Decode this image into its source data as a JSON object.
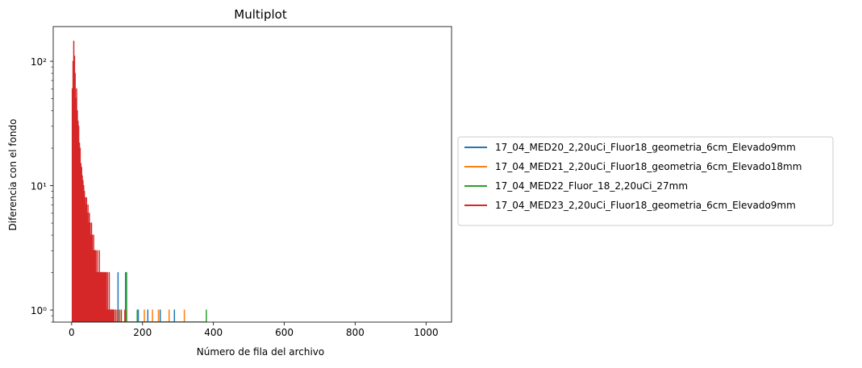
{
  "chart_data": {
    "type": "line",
    "title": "Multiplot",
    "xlabel": "Número de fila del archivo",
    "ylabel": "Diferencia con el fondo",
    "xlim": [
      -52,
      1072
    ],
    "ylim": [
      0.8,
      190
    ],
    "yscale": "log",
    "grid": false,
    "legend_position": "outside-right",
    "x_ticks": [
      0,
      200,
      400,
      600,
      800,
      1000
    ],
    "x_tick_labels": [
      "0",
      "200",
      "400",
      "600",
      "800",
      "1000"
    ],
    "y_ticks": [
      1,
      10,
      100
    ],
    "y_tick_labels": [
      "10⁰",
      "10¹",
      "10²"
    ],
    "series": [
      {
        "name": "17_04_MED20_2,20uCi_Fluor18_geometria_6cm_Elevado9mm",
        "color": "#1f77b4",
        "x": [
          8,
          12,
          15,
          18,
          22,
          26,
          30,
          34,
          38,
          42,
          48,
          55,
          62,
          70,
          80,
          90,
          105,
          131,
          152,
          188,
          215,
          250,
          290
        ],
        "y": [
          10,
          19,
          18,
          14,
          12,
          8,
          6,
          7,
          5,
          4,
          3,
          2,
          3,
          2,
          1,
          2,
          1,
          2,
          2,
          1,
          1,
          1,
          1
        ]
      },
      {
        "name": "17_04_MED21_2,20uCi_Fluor18_geometria_6cm_Elevado18mm",
        "color": "#ff7f0e",
        "x": [
          6,
          10,
          14,
          18,
          24,
          30,
          40,
          52,
          66,
          80,
          100,
          120,
          140,
          155,
          205,
          228,
          245,
          275,
          318
        ],
        "y": [
          9,
          27,
          11,
          8,
          6,
          5,
          4,
          3,
          2,
          2,
          1,
          1,
          1,
          1,
          1,
          1,
          1,
          1,
          1
        ]
      },
      {
        "name": "17_04_MED22_Fluor_18_2,20uCi_27mm",
        "color": "#2ca02c",
        "x": [
          5,
          8,
          11,
          14,
          17,
          20,
          24,
          28,
          33,
          38,
          44,
          50,
          58,
          66,
          75,
          85,
          100,
          120,
          135,
          155,
          185,
          380
        ],
        "y": [
          15,
          28,
          25,
          12,
          8,
          6,
          5,
          4,
          3,
          2,
          2,
          2,
          1,
          2,
          1,
          1,
          1,
          1,
          1,
          2,
          1,
          1
        ]
      },
      {
        "name": "17_04_MED23_2,20uCi_Fluor18_geometria_6cm_Elevado9mm",
        "color": "#d62728",
        "x": [
          2,
          4,
          6,
          7,
          8,
          9,
          10,
          11,
          12,
          13,
          14,
          15,
          16,
          17,
          18,
          19,
          20,
          21,
          22,
          23,
          24,
          25,
          26,
          27,
          28,
          29,
          30,
          31,
          32,
          33,
          34,
          35,
          36,
          37,
          38,
          39,
          40,
          41,
          42,
          43,
          44,
          45,
          46,
          47,
          48,
          49,
          50,
          51,
          52,
          53,
          54,
          55,
          56,
          57,
          58,
          59,
          60,
          61,
          62,
          63,
          64,
          65,
          66,
          67,
          68,
          69,
          70,
          71,
          72,
          73,
          74,
          75,
          76,
          77,
          78,
          79,
          80,
          81,
          82,
          83,
          84,
          85,
          86,
          87,
          88,
          89,
          90,
          91,
          92,
          93,
          94,
          95,
          96,
          97,
          98,
          99,
          100,
          101,
          102,
          103,
          104,
          105,
          106,
          107,
          108,
          109,
          110,
          111,
          112,
          113,
          114,
          115,
          116,
          118,
          120,
          125,
          130,
          140,
          150
        ],
        "y": [
          60,
          100,
          145,
          60,
          110,
          45,
          80,
          38,
          50,
          35,
          60,
          30,
          40,
          25,
          33,
          20,
          30,
          16,
          22,
          13,
          20,
          12,
          15,
          10,
          14,
          8,
          12,
          7,
          11,
          6,
          10,
          5,
          9,
          6,
          8,
          4,
          7,
          5,
          8,
          3,
          6,
          4,
          7,
          3,
          5,
          3,
          6,
          2,
          5,
          3,
          4,
          2,
          5,
          2,
          4,
          2,
          3,
          1,
          4,
          2,
          3,
          1,
          3,
          2,
          3,
          1,
          2,
          1,
          3,
          1,
          2,
          1,
          2,
          1,
          3,
          1,
          2,
          1,
          2,
          1,
          2,
          1,
          2,
          1,
          1,
          2,
          1,
          2,
          1,
          1,
          2,
          1,
          1,
          2,
          1,
          1,
          1,
          2,
          1,
          1,
          1,
          1,
          2,
          1,
          1,
          1,
          1,
          1,
          1,
          1,
          1,
          1,
          1,
          1,
          1,
          1,
          1,
          1,
          1
        ]
      }
    ]
  }
}
